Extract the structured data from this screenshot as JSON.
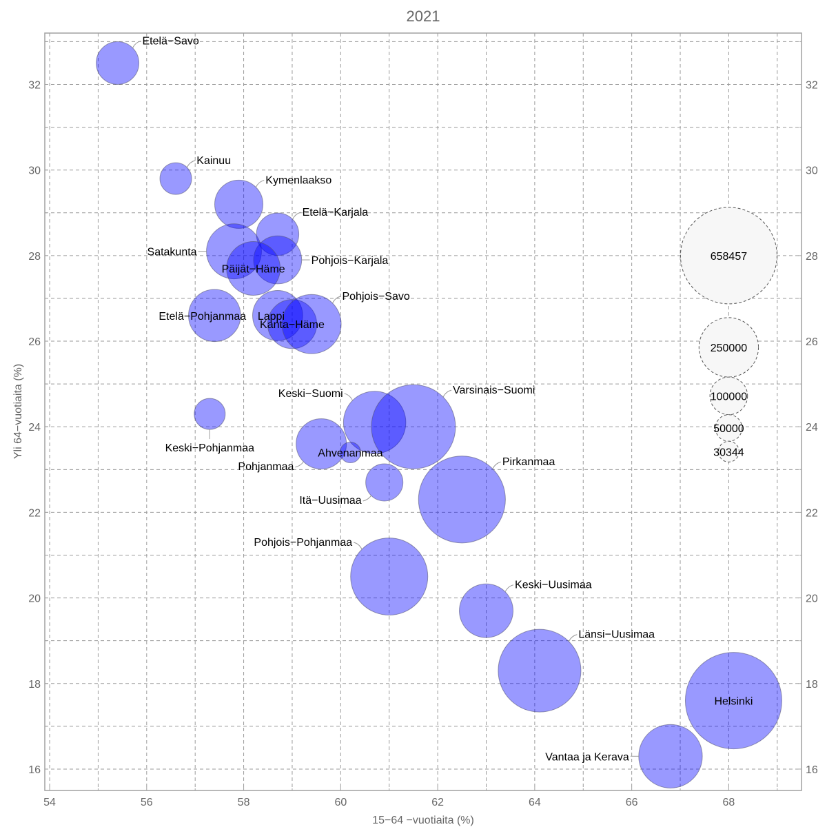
{
  "chart_data": {
    "type": "scatter",
    "subtype": "bubble",
    "title": "2021",
    "xlabel": "15−64 −vuotiaita (%)",
    "ylabel": "Yli 64−vuotiaita (%)",
    "xlim": [
      53.9,
      69.5
    ],
    "ylim": [
      15.5,
      33.2
    ],
    "x_ticks": [
      54,
      56,
      58,
      60,
      62,
      64,
      66,
      68
    ],
    "y_ticks": [
      16,
      18,
      20,
      22,
      24,
      26,
      28,
      30,
      32
    ],
    "x_minor_grid": [
      55,
      57,
      59,
      61,
      63,
      65,
      67,
      69
    ],
    "y_minor_grid": [
      17,
      19,
      21,
      23,
      25,
      27,
      29,
      31,
      33
    ],
    "grid": true,
    "bubble_color": "#0000ff",
    "size_variable": "population",
    "series": [
      {
        "name": "Etelä-Savo",
        "label": "Etelä−Savo",
        "x": 55.4,
        "y": 32.5,
        "size": 129000,
        "label_pos": "top-right"
      },
      {
        "name": "Kainuu",
        "label": "Kainuu",
        "x": 56.6,
        "y": 29.8,
        "size": 71000,
        "label_pos": "top-right"
      },
      {
        "name": "Kymenlaakso",
        "label": "Kymenlaakso",
        "x": 57.9,
        "y": 29.2,
        "size": 164600,
        "label_pos": "top-right"
      },
      {
        "name": "Etelä-Karjala",
        "label": "Etelä−Karjala",
        "x": 58.7,
        "y": 28.5,
        "size": 127000,
        "label_pos": "top-right"
      },
      {
        "name": "Satakunta",
        "label": "Satakunta",
        "x": 57.8,
        "y": 28.1,
        "size": 214000,
        "label_pos": "left"
      },
      {
        "name": "Pohjois-Karjala",
        "label": "Pohjois−Karjala",
        "x": 58.7,
        "y": 27.9,
        "size": 163000,
        "label_pos": "right"
      },
      {
        "name": "Päijät-Häme",
        "label": "Päijät−Häme",
        "x": 58.2,
        "y": 27.7,
        "size": 204000,
        "label_pos": "center"
      },
      {
        "name": "Etelä-Pohjanmaa",
        "label": "Etelä−Pohjanmaa",
        "x": 57.4,
        "y": 26.6,
        "size": 192000,
        "label_pos": "center"
      },
      {
        "name": "Lappi",
        "label": "Lappi",
        "x": 58.7,
        "y": 26.6,
        "size": 177000,
        "label_pos": "center"
      },
      {
        "name": "Kanta-Häme",
        "label": "Kanta−Häme",
        "x": 59.0,
        "y": 26.4,
        "size": 170000,
        "label_pos": "center"
      },
      {
        "name": "Pohjois-Savo",
        "label": "Pohjois−Savo",
        "x": 59.4,
        "y": 26.4,
        "size": 248000,
        "label_pos": "top-right"
      },
      {
        "name": "Keski-Pohjanmaa",
        "label": "Keski−Pohjanmaa",
        "x": 57.3,
        "y": 24.3,
        "size": 68000,
        "label_pos": "bottom"
      },
      {
        "name": "Keski-Suomi",
        "label": "Keski−Suomi",
        "x": 60.7,
        "y": 24.1,
        "size": 275000,
        "label_pos": "top-left"
      },
      {
        "name": "Varsinais-Suomi",
        "label": "Varsinais−Suomi",
        "x": 61.5,
        "y": 24.0,
        "size": 500000,
        "label_pos": "top-right"
      },
      {
        "name": "Pohjanmaa",
        "label": "Pohjanmaa",
        "x": 59.6,
        "y": 23.6,
        "size": 179000,
        "label_pos": "bottom-left"
      },
      {
        "name": "Ahvenanmaa",
        "label": "Ahvenanmaa",
        "x": 60.2,
        "y": 23.4,
        "size": 30344,
        "label_pos": "center"
      },
      {
        "name": "Itä-Uusimaa",
        "label": "Itä−Uusimaa",
        "x": 60.9,
        "y": 22.7,
        "size": 98000,
        "label_pos": "bottom-left"
      },
      {
        "name": "Pirkanmaa",
        "label": "Pirkanmaa",
        "x": 62.5,
        "y": 22.3,
        "size": 534000,
        "label_pos": "top-right"
      },
      {
        "name": "Pohjois-Pohjanmaa",
        "label": "Pohjois−Pohjanmaa",
        "x": 61.0,
        "y": 20.5,
        "size": 421000,
        "label_pos": "top-left"
      },
      {
        "name": "Keski-Uusimaa",
        "label": "Keski−Uusimaa",
        "x": 63.0,
        "y": 19.7,
        "size": 204000,
        "label_pos": "top-right"
      },
      {
        "name": "Länsi-Uusimaa",
        "label": "Länsi−Uusimaa",
        "x": 64.1,
        "y": 18.3,
        "size": 484000,
        "label_pos": "top-right"
      },
      {
        "name": "Helsinki",
        "label": "Helsinki",
        "x": 68.1,
        "y": 17.6,
        "size": 658457,
        "label_pos": "center"
      },
      {
        "name": "Vantaa ja Kerava",
        "label": "Vantaa ja Kerava",
        "x": 66.8,
        "y": 16.3,
        "size": 286000,
        "label_pos": "left"
      }
    ],
    "size_legend": {
      "x": 68.0,
      "values": [
        658457,
        250000,
        100000,
        50000,
        30344
      ],
      "labels": [
        "658457",
        "250000",
        "100000",
        "50000",
        "30344"
      ]
    }
  }
}
